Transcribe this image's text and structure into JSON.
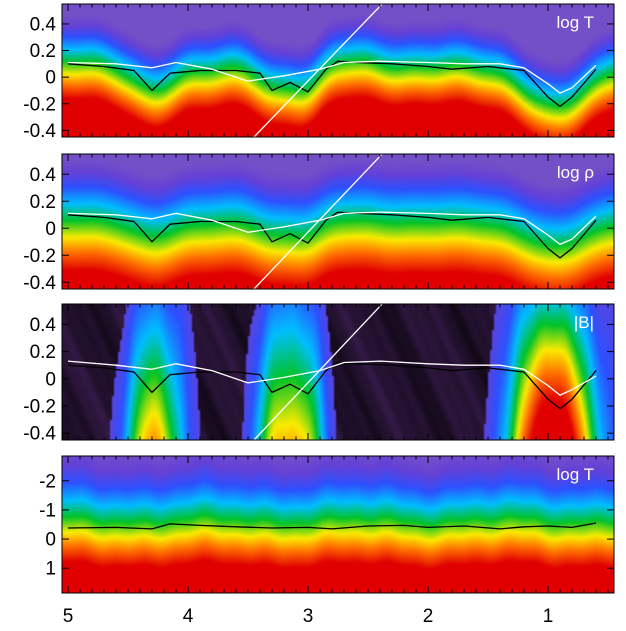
{
  "chart_data": [
    {
      "type": "heatmap",
      "label": "log T",
      "yticks": [
        0.4,
        0.2,
        0.0,
        -0.2,
        -0.4
      ],
      "ylim": [
        -0.45,
        0.55
      ],
      "inverted": false,
      "field": "temperature",
      "series": [
        {
          "name": "black",
          "x": [
            5.0,
            4.7,
            4.45,
            4.3,
            4.15,
            3.9,
            3.6,
            3.4,
            3.3,
            3.15,
            3.0,
            2.85,
            2.75,
            2.6,
            2.3,
            2.0,
            1.8,
            1.5,
            1.2,
            1.0,
            0.9,
            0.8,
            0.6
          ],
          "y": [
            0.1,
            0.08,
            0.05,
            -0.1,
            0.03,
            0.05,
            0.05,
            0.03,
            -0.1,
            -0.04,
            -0.11,
            0.06,
            0.12,
            0.11,
            0.1,
            0.08,
            0.06,
            0.08,
            0.05,
            -0.15,
            -0.22,
            -0.15,
            0.06
          ]
        },
        {
          "name": "white",
          "x": [
            5.0,
            4.6,
            4.3,
            4.1,
            3.8,
            3.5,
            3.2,
            2.9,
            2.7,
            2.4,
            2.0,
            1.7,
            1.4,
            1.2,
            1.0,
            0.9,
            0.8,
            0.6
          ],
          "y": [
            0.11,
            0.1,
            0.07,
            0.11,
            0.06,
            -0.03,
            0.01,
            0.06,
            0.11,
            0.12,
            0.11,
            0.1,
            0.1,
            0.07,
            -0.05,
            -0.12,
            -0.08,
            0.09
          ]
        }
      ],
      "diagonal": [
        [
          3.45,
          -0.45
        ],
        [
          2.35,
          0.58
        ]
      ]
    },
    {
      "type": "heatmap",
      "label": "log ρ",
      "yticks": [
        0.4,
        0.2,
        0.0,
        -0.2,
        -0.4
      ],
      "ylim": [
        -0.45,
        0.55
      ],
      "inverted": false,
      "field": "density",
      "series": [
        {
          "name": "black",
          "x": [
            5.0,
            4.7,
            4.45,
            4.3,
            4.15,
            3.9,
            3.6,
            3.4,
            3.3,
            3.15,
            3.0,
            2.85,
            2.75,
            2.6,
            2.3,
            2.0,
            1.8,
            1.5,
            1.2,
            1.0,
            0.9,
            0.8,
            0.6
          ],
          "y": [
            0.1,
            0.08,
            0.05,
            -0.1,
            0.03,
            0.05,
            0.05,
            0.03,
            -0.1,
            -0.04,
            -0.11,
            0.06,
            0.12,
            0.11,
            0.1,
            0.08,
            0.06,
            0.08,
            0.05,
            -0.15,
            -0.22,
            -0.15,
            0.06
          ]
        },
        {
          "name": "white",
          "x": [
            5.0,
            4.6,
            4.3,
            4.1,
            3.8,
            3.5,
            3.2,
            2.9,
            2.7,
            2.4,
            2.0,
            1.7,
            1.4,
            1.2,
            1.0,
            0.9,
            0.8,
            0.6
          ],
          "y": [
            0.11,
            0.1,
            0.07,
            0.11,
            0.06,
            -0.03,
            0.01,
            0.06,
            0.11,
            0.12,
            0.11,
            0.1,
            0.1,
            0.07,
            -0.05,
            -0.12,
            -0.08,
            0.09
          ]
        }
      ],
      "diagonal": [
        [
          3.45,
          -0.45
        ],
        [
          2.35,
          0.58
        ]
      ]
    },
    {
      "type": "heatmap",
      "label": "|B|",
      "yticks": [
        0.4,
        0.2,
        0.0,
        -0.2,
        -0.4
      ],
      "ylim": [
        -0.45,
        0.55
      ],
      "inverted": false,
      "field": "magnetic",
      "series": [
        {
          "name": "black",
          "x": [
            5.0,
            4.7,
            4.45,
            4.3,
            4.15,
            3.9,
            3.6,
            3.4,
            3.3,
            3.15,
            3.0,
            2.85,
            2.75,
            2.6,
            2.3,
            2.0,
            1.8,
            1.5,
            1.2,
            1.0,
            0.9,
            0.8,
            0.6
          ],
          "y": [
            0.1,
            0.08,
            0.05,
            -0.1,
            0.03,
            0.05,
            0.05,
            0.03,
            -0.1,
            -0.04,
            -0.11,
            0.06,
            0.12,
            0.11,
            0.1,
            0.08,
            0.06,
            0.08,
            0.05,
            -0.15,
            -0.22,
            -0.15,
            0.06
          ]
        },
        {
          "name": "white",
          "x": [
            5.0,
            4.6,
            4.3,
            4.1,
            3.8,
            3.5,
            3.2,
            2.9,
            2.7,
            2.4,
            2.0,
            1.7,
            1.4,
            1.2,
            1.0,
            0.9,
            0.8,
            0.6
          ],
          "y": [
            0.13,
            0.1,
            0.07,
            0.11,
            0.06,
            -0.03,
            0.01,
            0.06,
            0.12,
            0.13,
            0.11,
            0.1,
            0.1,
            0.07,
            -0.05,
            -0.12,
            -0.08,
            0.02
          ]
        }
      ],
      "diagonal": [
        [
          3.45,
          -0.45
        ],
        [
          2.35,
          0.58
        ]
      ]
    },
    {
      "type": "heatmap",
      "label": "log T",
      "yticks": [
        -2,
        -1,
        0,
        1
      ],
      "ylim": [
        -2.85,
        1.85
      ],
      "inverted": true,
      "field": "temperature-tau",
      "series": [
        {
          "name": "black",
          "x": [
            5.0,
            4.6,
            4.3,
            4.15,
            3.9,
            3.6,
            3.3,
            3.0,
            2.8,
            2.5,
            2.2,
            2.0,
            1.7,
            1.4,
            1.2,
            1.0,
            0.8,
            0.6
          ],
          "y": [
            -0.38,
            -0.4,
            -0.35,
            -0.52,
            -0.47,
            -0.42,
            -0.38,
            -0.4,
            -0.35,
            -0.45,
            -0.47,
            -0.4,
            -0.45,
            -0.35,
            -0.42,
            -0.45,
            -0.4,
            -0.55
          ]
        }
      ]
    }
  ],
  "x_axis": {
    "ticks": [
      5,
      4,
      3,
      2,
      1
    ],
    "xlim": [
      5.05,
      0.45
    ]
  },
  "colors": {
    "red": "#e60000",
    "orange": "#ff8c00",
    "yellow": "#f5f000",
    "green": "#00c000",
    "cyan": "#00bfff",
    "blue": "#2a4bff",
    "purple": "#6a3fd8",
    "dark": "#1a1020"
  }
}
